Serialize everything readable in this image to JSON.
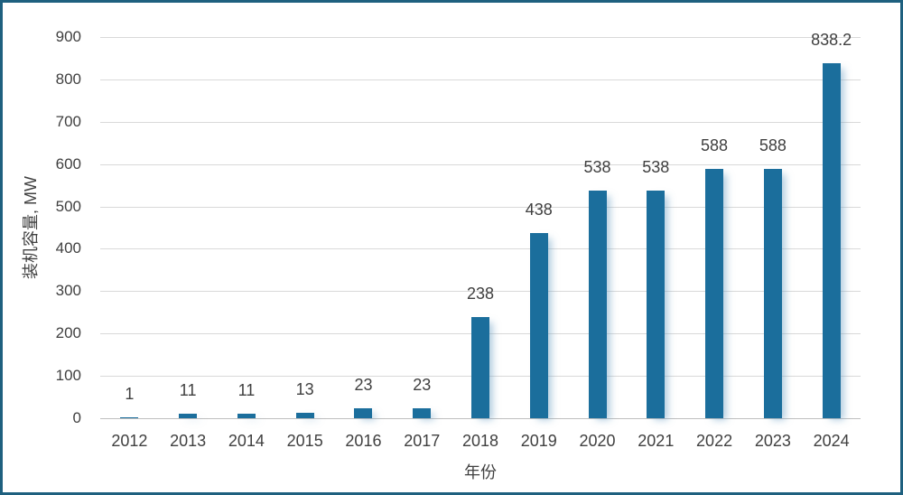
{
  "chart_data": {
    "type": "bar",
    "title": "",
    "xlabel": "年份",
    "ylabel": "装机容量, MW",
    "categories": [
      "2012",
      "2013",
      "2014",
      "2015",
      "2016",
      "2017",
      "2018",
      "2019",
      "2020",
      "2021",
      "2022",
      "2023",
      "2024"
    ],
    "values": [
      1,
      11,
      11,
      13,
      23,
      23,
      238,
      438,
      538,
      538,
      588,
      588,
      838.2
    ],
    "value_labels": [
      "1",
      "11",
      "11",
      "13",
      "23",
      "23",
      "238",
      "438",
      "538",
      "538",
      "588",
      "588",
      "838.2"
    ],
    "ylim": [
      0,
      900
    ],
    "yticks": [
      0,
      100,
      200,
      300,
      400,
      500,
      600,
      700,
      800,
      900
    ],
    "grid": "horizontal",
    "legend": "none",
    "colors": {
      "bar": "#1B6E9C",
      "grid_line": "#D9D9D9",
      "axis_line": "#BFBFBF",
      "text": "#404040",
      "frame_border": "#1E607F",
      "background": "#FFFFFF"
    }
  }
}
